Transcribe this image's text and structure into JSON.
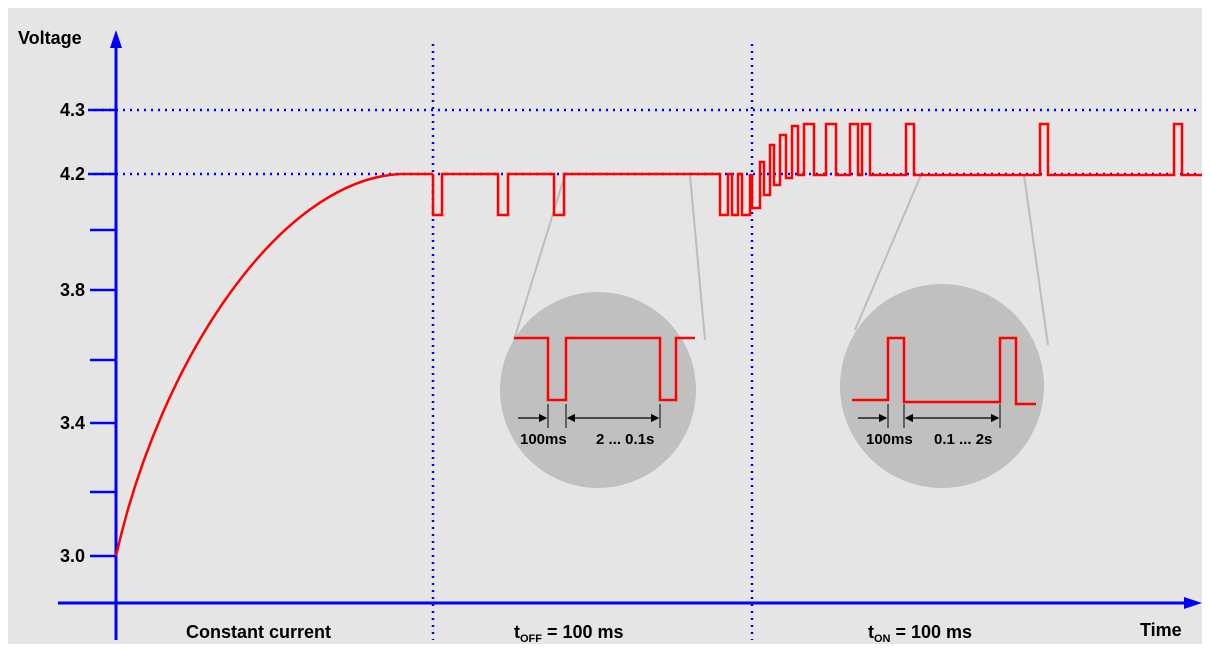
{
  "colors": {
    "background": "#e5e5e5",
    "axis": "#0000ff",
    "signal": "#ff0000",
    "magnifier": "#c0c0c0",
    "connector": "#bdbdbd"
  },
  "axes": {
    "y_label": "Voltage",
    "x_label": "Time",
    "y_ticks": [
      {
        "label": "4.3"
      },
      {
        "label": "4.2"
      },
      {
        "label": ""
      },
      {
        "label": "3.8"
      },
      {
        "label": ""
      },
      {
        "label": "3.4"
      },
      {
        "label": ""
      },
      {
        "label": "3.0"
      }
    ]
  },
  "phases": [
    {
      "label": "Constant current"
    },
    {
      "label_main": "t",
      "label_sub": "OFF",
      "label_rest": " = 100 ms"
    },
    {
      "label_main": "t",
      "label_sub": "ON",
      "label_rest": " = 100 ms"
    }
  ],
  "zoom_off": {
    "pulse_label": "100ms",
    "gap_label": "2 ... 0.1s"
  },
  "zoom_on": {
    "pulse_label": "100ms",
    "gap_label": "0.1 ... 2s"
  }
}
